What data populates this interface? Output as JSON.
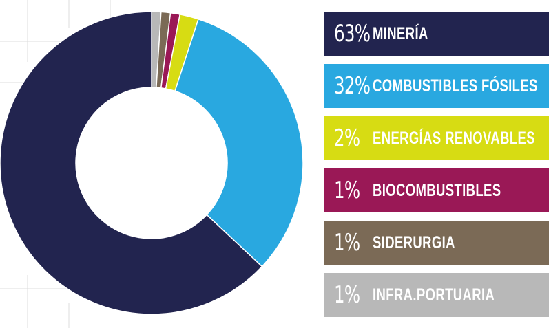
{
  "chart_data": {
    "type": "pie",
    "style": "donut",
    "legend_position": "right",
    "start_angle": "top",
    "direction": "clockwise",
    "slices": [
      {
        "order": 1,
        "label": "MINERÍA",
        "pct_text": "63%",
        "value": 63,
        "color": "#22244f",
        "text_color": "#ffffff"
      },
      {
        "order": 2,
        "label": "COMBUSTIBLES FÓSILES",
        "pct_text": "32%",
        "value": 32,
        "color": "#29a8e0",
        "text_color": "#ffffff"
      },
      {
        "order": 3,
        "label": "ENERGÍAS RENOVABLES",
        "pct_text": "2%",
        "value": 2,
        "color": "#d7dc13",
        "text_color": "#ffffff"
      },
      {
        "order": 4,
        "label": "BIOCOMBUSTIBLES",
        "pct_text": "1%",
        "value": 1,
        "color": "#9a1856",
        "text_color": "#ffffff"
      },
      {
        "order": 5,
        "label": "SIDERURGIA",
        "pct_text": "1%",
        "value": 1,
        "color": "#7b6a56",
        "text_color": "#ffffff"
      },
      {
        "order": 6,
        "label": "INFRA.PORTUARIA",
        "pct_text": "1%",
        "value": 1,
        "color": "#b8b8b8",
        "text_color": "#ffffff"
      }
    ]
  }
}
